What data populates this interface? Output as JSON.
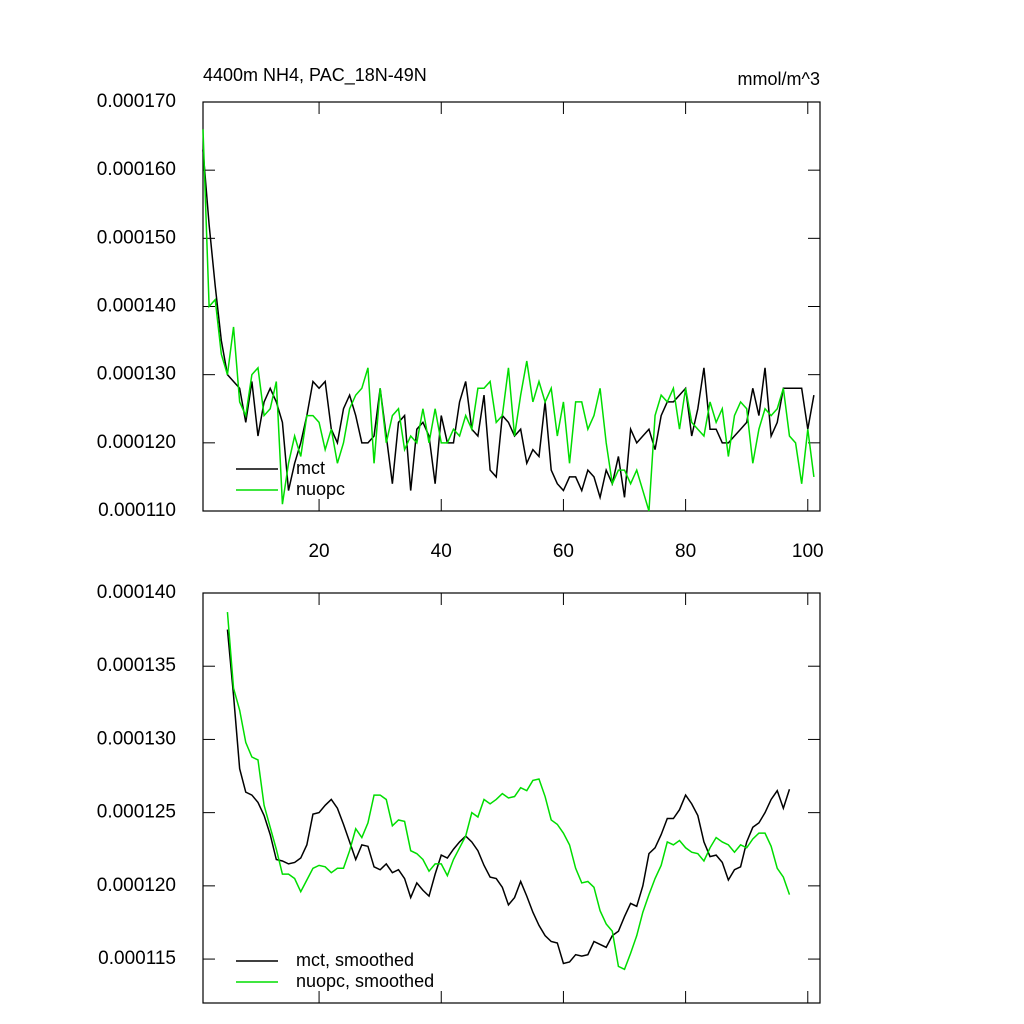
{
  "chart_data": [
    {
      "type": "line",
      "title": "4400m NH4, PAC_18N-49N",
      "units": "mmol/m^3",
      "x": [
        1,
        2,
        3,
        4,
        5,
        6,
        7,
        8,
        9,
        10,
        11,
        12,
        13,
        14,
        15,
        16,
        17,
        18,
        19,
        20,
        21,
        22,
        23,
        24,
        25,
        26,
        27,
        28,
        29,
        30,
        31,
        32,
        33,
        34,
        35,
        36,
        37,
        38,
        39,
        40,
        41,
        42,
        43,
        44,
        45,
        46,
        47,
        48,
        49,
        50,
        51,
        52,
        53,
        54,
        55,
        56,
        57,
        58,
        59,
        60,
        61,
        62,
        63,
        64,
        65,
        66,
        67,
        68,
        69,
        70,
        71,
        72,
        73,
        74,
        75,
        76,
        77,
        78,
        79,
        80,
        81,
        82,
        83,
        84,
        85,
        86,
        87,
        88,
        89,
        90,
        91,
        92,
        93,
        94,
        95,
        96,
        97,
        98,
        99,
        100,
        101
      ],
      "series": [
        {
          "name": "mct",
          "color": "#000000",
          "values": [
            0.000163,
            0.000152,
            0.000143,
            0.000135,
            0.00013,
            0.000129,
            0.000128,
            0.000123,
            0.000129,
            0.000121,
            0.000126,
            0.000128,
            0.000126,
            0.000123,
            0.000113,
            0.000117,
            0.00012,
            0.000124,
            0.000129,
            0.000128,
            0.000129,
            0.000122,
            0.00012,
            0.000125,
            0.000127,
            0.000124,
            0.00012,
            0.00012,
            0.000121,
            0.000128,
            0.000121,
            0.000114,
            0.000123,
            0.000124,
            0.000113,
            0.000122,
            0.000123,
            0.000121,
            0.000114,
            0.000124,
            0.00012,
            0.00012,
            0.000126,
            0.000129,
            0.000122,
            0.000121,
            0.000127,
            0.000116,
            0.000115,
            0.000124,
            0.000123,
            0.000121,
            0.000122,
            0.000117,
            0.000119,
            0.000118,
            0.000126,
            0.000116,
            0.000114,
            0.000113,
            0.000115,
            0.000115,
            0.000113,
            0.000116,
            0.000115,
            0.000112,
            0.000116,
            0.000114,
            0.000118,
            0.000112,
            0.000122,
            0.00012,
            0.000121,
            0.000122,
            0.000119,
            0.000124,
            0.000126,
            0.000126,
            0.000127,
            0.000128,
            0.000121,
            0.000125,
            0.000131,
            0.000122,
            0.000122,
            0.00012,
            0.00012,
            0.000121,
            0.000122,
            0.000123,
            0.000128,
            0.000124,
            0.000131,
            0.000121,
            0.000123,
            0.000128,
            0.000128,
            0.000128,
            0.000128,
            0.000122,
            0.000127
          ]
        },
        {
          "name": "nuopc",
          "color": "#00dd00",
          "values": [
            0.000166,
            0.00014,
            0.000141,
            0.000133,
            0.00013,
            0.000137,
            0.000126,
            0.000124,
            0.00013,
            0.000131,
            0.000124,
            0.000125,
            0.000129,
            0.000111,
            0.000117,
            0.000121,
            0.000118,
            0.000124,
            0.000124,
            0.000123,
            0.000119,
            0.000122,
            0.000117,
            0.00012,
            0.000125,
            0.000127,
            0.000128,
            0.000131,
            0.000117,
            0.000128,
            0.00012,
            0.000124,
            0.000125,
            0.000119,
            0.000121,
            0.00012,
            0.000125,
            0.00012,
            0.000125,
            0.00012,
            0.00012,
            0.000122,
            0.000121,
            0.000124,
            0.000122,
            0.000128,
            0.000128,
            0.000129,
            0.000123,
            0.000124,
            0.000131,
            0.000121,
            0.000127,
            0.000132,
            0.000126,
            0.000129,
            0.000126,
            0.000128,
            0.000121,
            0.000126,
            0.000117,
            0.000126,
            0.000126,
            0.000122,
            0.000124,
            0.000128,
            0.00012,
            0.000114,
            0.000116,
            0.000116,
            0.000114,
            0.000116,
            0.000113,
            0.00011,
            0.000124,
            0.000127,
            0.000126,
            0.000128,
            0.000122,
            0.000128,
            0.000123,
            0.000122,
            0.000121,
            0.000126,
            0.000123,
            0.000125,
            0.000118,
            0.000124,
            0.000126,
            0.000125,
            0.000117,
            0.000122,
            0.000125,
            0.000124,
            0.000125,
            0.000128,
            0.000121,
            0.00012,
            0.000114,
            0.000122,
            0.000115
          ]
        }
      ],
      "xlim": [
        1,
        102
      ],
      "xticks": [
        20,
        40,
        60,
        80,
        100
      ],
      "ylim": [
        0.00011,
        0.00017
      ],
      "yticks": [
        {
          "value": 0.00011,
          "label": "0.000110"
        },
        {
          "value": 0.00012,
          "label": "0.000120"
        },
        {
          "value": 0.00013,
          "label": "0.000130"
        },
        {
          "value": 0.00014,
          "label": "0.000140"
        },
        {
          "value": 0.00015,
          "label": "0.000150"
        },
        {
          "value": 0.00016,
          "label": "0.000160"
        },
        {
          "value": 0.00017,
          "label": "0.000170"
        }
      ],
      "legend": "lower left"
    },
    {
      "type": "line",
      "x": [
        5,
        6,
        7,
        8,
        9,
        10,
        11,
        12,
        13,
        14,
        15,
        16,
        17,
        18,
        19,
        20,
        21,
        22,
        23,
        24,
        25,
        26,
        27,
        28,
        29,
        30,
        31,
        32,
        33,
        34,
        35,
        36,
        37,
        38,
        39,
        40,
        41,
        42,
        43,
        44,
        45,
        46,
        47,
        48,
        49,
        50,
        51,
        52,
        53,
        54,
        55,
        56,
        57,
        58,
        59,
        60,
        61,
        62,
        63,
        64,
        65,
        66,
        67,
        68,
        69,
        70,
        71,
        72,
        73,
        74,
        75,
        76,
        77,
        78,
        79,
        80,
        81,
        82,
        83,
        84,
        85,
        86,
        87,
        88,
        89,
        90,
        91,
        92,
        93,
        94,
        95,
        96,
        97
      ],
      "series": [
        {
          "name": "mct, smoothed",
          "color": "#000000",
          "values": [
            0.0001375,
            0.000133,
            0.000128,
            0.0001264,
            0.0001262,
            0.0001257,
            0.0001248,
            0.0001235,
            0.0001218,
            0.0001217,
            0.0001215,
            0.0001216,
            0.0001219,
            0.0001228,
            0.0001249,
            0.000125,
            0.0001255,
            0.0001259,
            0.0001253,
            0.0001242,
            0.000123,
            0.0001218,
            0.0001228,
            0.0001227,
            0.0001213,
            0.0001211,
            0.0001215,
            0.0001209,
            0.0001211,
            0.0001205,
            0.0001192,
            0.0001202,
            0.0001197,
            0.0001193,
            0.0001208,
            0.0001221,
            0.0001219,
            0.0001225,
            0.000123,
            0.0001234,
            0.000123,
            0.0001224,
            0.0001214,
            0.0001206,
            0.0001205,
            0.0001199,
            0.0001187,
            0.0001192,
            0.0001203,
            0.0001193,
            0.0001182,
            0.0001173,
            0.0001166,
            0.0001162,
            0.0001161,
            0.0001147,
            0.0001148,
            0.0001153,
            0.0001152,
            0.0001153,
            0.0001162,
            0.000116,
            0.0001158,
            0.0001166,
            0.0001169,
            0.0001179,
            0.0001188,
            0.0001186,
            0.00012,
            0.0001222,
            0.0001226,
            0.0001235,
            0.0001246,
            0.0001246,
            0.0001252,
            0.0001262,
            0.0001256,
            0.0001248,
            0.000123,
            0.000122,
            0.0001221,
            0.0001216,
            0.0001204,
            0.0001211,
            0.0001213,
            0.000123,
            0.000124,
            0.0001243,
            0.000125,
            0.0001259,
            0.0001265,
            0.0001253,
            0.0001266
          ]
        },
        {
          "name": "nuopc, smoothed",
          "color": "#00dd00",
          "values": [
            0.0001387,
            0.0001335,
            0.000132,
            0.0001298,
            0.0001288,
            0.0001286,
            0.0001255,
            0.000124,
            0.0001225,
            0.0001208,
            0.0001208,
            0.0001205,
            0.0001196,
            0.0001204,
            0.0001212,
            0.0001214,
            0.0001213,
            0.0001209,
            0.0001212,
            0.0001212,
            0.0001224,
            0.0001239,
            0.0001233,
            0.0001243,
            0.0001262,
            0.0001262,
            0.0001259,
            0.0001241,
            0.0001245,
            0.0001244,
            0.0001224,
            0.0001222,
            0.0001218,
            0.000121,
            0.0001215,
            0.0001215,
            0.0001207,
            0.0001218,
            0.0001226,
            0.0001234,
            0.000125,
            0.0001247,
            0.0001259,
            0.0001256,
            0.0001259,
            0.0001263,
            0.000126,
            0.0001261,
            0.0001267,
            0.0001265,
            0.0001272,
            0.0001273,
            0.0001261,
            0.0001245,
            0.0001242,
            0.0001236,
            0.0001228,
            0.0001212,
            0.0001202,
            0.0001203,
            0.0001199,
            0.0001183,
            0.0001174,
            0.0001169,
            0.0001145,
            0.0001143,
            0.0001154,
            0.0001166,
            0.0001182,
            0.0001194,
            0.0001205,
            0.0001214,
            0.000123,
            0.0001228,
            0.0001231,
            0.0001226,
            0.0001223,
            0.0001222,
            0.0001217,
            0.0001226,
            0.0001233,
            0.000123,
            0.0001228,
            0.0001223,
            0.0001228,
            0.0001226,
            0.0001232,
            0.0001236,
            0.0001236,
            0.0001227,
            0.0001212,
            0.0001206,
            0.0001194
          ]
        }
      ],
      "xlim": [
        1,
        102
      ],
      "xticks": [
        20,
        40,
        60,
        80,
        100
      ],
      "ylim": [
        0.000112,
        0.00014
      ],
      "yticks": [
        {
          "value": 0.000115,
          "label": "0.000115"
        },
        {
          "value": 0.00012,
          "label": "0.000120"
        },
        {
          "value": 0.000125,
          "label": "0.000125"
        },
        {
          "value": 0.00013,
          "label": "0.000130"
        },
        {
          "value": 0.000135,
          "label": "0.000135"
        },
        {
          "value": 0.00014,
          "label": "0.000140"
        }
      ],
      "legend": "lower left"
    }
  ]
}
